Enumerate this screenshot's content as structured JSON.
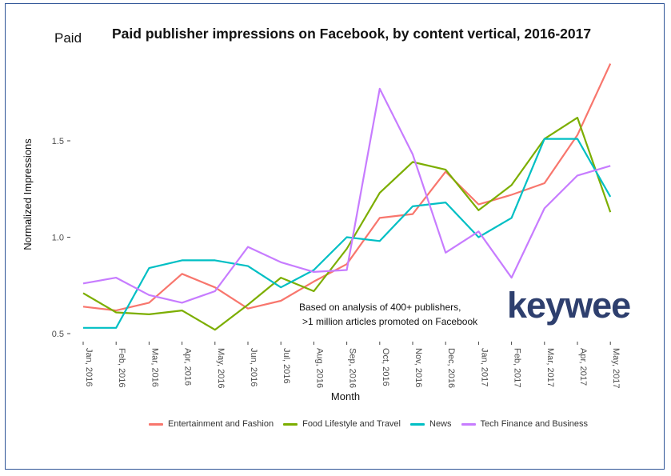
{
  "chart_data": {
    "type": "line",
    "title": "Paid publisher impressions on Facebook, by content vertical, 2016-2017",
    "corner_label": "Paid",
    "xlabel": "Month",
    "ylabel": "Normalized Impressions",
    "ylim": [
      0.47,
      1.93
    ],
    "yticks": [
      0.5,
      1.0,
      1.5
    ],
    "ytick_labels": [
      "0.5",
      "1.0",
      "1.5"
    ],
    "categories": [
      "Jan, 2016",
      "Feb, 2016",
      "Mar, 2016",
      "Apr, 2016",
      "May, 2016",
      "Jun, 2016",
      "Jul, 2016",
      "Aug, 2016",
      "Sep, 2016",
      "Oct, 2016",
      "Nov, 2016",
      "Dec, 2016",
      "Jan, 2017",
      "Feb, 2017",
      "Mar, 2017",
      "Apr, 2017",
      "May, 2017"
    ],
    "series": [
      {
        "name": "Entertainment and Fashion",
        "color": "#f8766d",
        "values": [
          0.64,
          0.62,
          0.66,
          0.81,
          0.74,
          0.63,
          0.67,
          0.77,
          0.86,
          1.1,
          1.12,
          1.34,
          1.17,
          1.22,
          1.28,
          1.53,
          1.9
        ]
      },
      {
        "name": "Food Lifestyle and Travel",
        "color": "#7cae00",
        "values": [
          0.71,
          0.61,
          0.6,
          0.62,
          0.52,
          0.65,
          0.79,
          0.72,
          0.94,
          1.23,
          1.39,
          1.35,
          1.14,
          1.27,
          1.51,
          1.62,
          1.13
        ]
      },
      {
        "name": "News",
        "color": "#00bfc4",
        "values": [
          0.53,
          0.53,
          0.84,
          0.88,
          0.88,
          0.85,
          0.74,
          0.83,
          1.0,
          0.98,
          1.16,
          1.18,
          1.0,
          1.1,
          1.51,
          1.51,
          1.21
        ]
      },
      {
        "name": "Tech Finance and Business",
        "color": "#c77cff",
        "values": [
          0.76,
          0.79,
          0.7,
          0.66,
          0.72,
          0.95,
          0.87,
          0.82,
          0.83,
          1.77,
          1.43,
          0.92,
          1.03,
          0.79,
          1.15,
          1.32,
          1.37
        ]
      }
    ]
  },
  "annotation": {
    "line1": "Based on analysis of 400+ publishers,",
    "line2": ">1 million articles promoted on Facebook"
  },
  "brand": {
    "logo_text": "keywee",
    "logo_color": "#2e3f6e"
  }
}
